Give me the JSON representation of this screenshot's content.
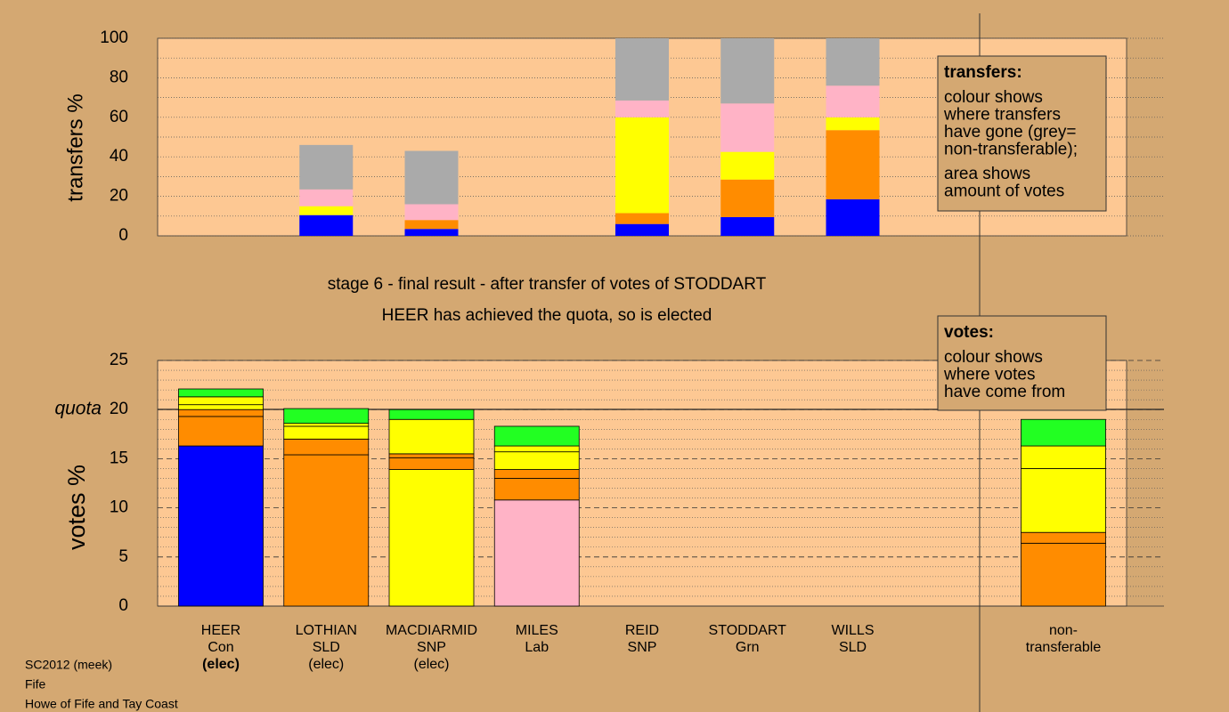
{
  "chart_data": [
    {
      "type": "stacked-bar",
      "ylabel": "transfers %",
      "ylim": [
        0,
        100
      ],
      "yticks": [
        0,
        20,
        40,
        60,
        80,
        100
      ],
      "minor_yticks": [
        10,
        30,
        50,
        70,
        90
      ],
      "series": [
        {
          "color": "#0000ff",
          "values": [
            null,
            10.5,
            3.5,
            null,
            6,
            9.5,
            18.5,
            null
          ]
        },
        {
          "color": "#ff8c00",
          "values": [
            null,
            0,
            4.5,
            null,
            5.5,
            19,
            35,
            null
          ]
        },
        {
          "color": "#ffff00",
          "values": [
            null,
            4.5,
            0,
            null,
            48.5,
            14,
            6.5,
            null
          ]
        },
        {
          "color": "#ffb3c6",
          "values": [
            null,
            8.5,
            8,
            null,
            8.5,
            24.5,
            16,
            null
          ]
        },
        {
          "color": "#aaaaaa",
          "values": [
            null,
            22.5,
            27,
            null,
            31.5,
            33,
            24,
            null
          ]
        }
      ],
      "note": {
        "heading": "transfers:",
        "paragraphs": [
          [
            "colour shows",
            "where transfers",
            "have gone (grey=",
            "non-transferable);"
          ],
          [
            "area shows",
            "amount of votes"
          ]
        ]
      }
    },
    {
      "type": "stacked-bar",
      "title": "stage 6 - final result - after transfer of votes of STODDART",
      "subtitle": "HEER has achieved the quota, so is elected",
      "ylabel": "votes %",
      "ylim": [
        0,
        25
      ],
      "yticks": [
        0,
        5,
        10,
        15,
        20,
        25
      ],
      "minor_yticks": [
        1,
        2,
        3,
        4,
        6,
        7,
        8,
        9,
        11,
        12,
        13,
        14,
        16,
        17,
        18,
        19,
        21,
        22,
        23,
        24
      ],
      "quota": {
        "label": "quota",
        "value": 20.02
      },
      "categories": [
        [
          "HEER",
          "Con",
          "(elec)"
        ],
        [
          "LOTHIAN",
          "SLD",
          "(elec)"
        ],
        [
          "MACDIARMID",
          "SNP",
          "(elec)"
        ],
        [
          "MILES",
          "Lab"
        ],
        [
          "REID",
          "SNP"
        ],
        [
          "STODDART",
          "Grn"
        ],
        [
          "WILLS",
          "SLD"
        ],
        [
          "non-",
          "transferable"
        ]
      ],
      "label_bold": [
        true,
        false,
        false,
        false,
        false,
        false,
        false,
        false
      ],
      "stacks": [
        [
          {
            "value": 16.3,
            "color": "#0000ff"
          },
          {
            "value": 3.0,
            "color": "#ff8c00"
          },
          {
            "value": 0.7,
            "color": "#ff8c00"
          },
          {
            "value": 0.5,
            "color": "#ffff00"
          },
          {
            "value": 0.8,
            "color": "#ffff00"
          },
          {
            "value": 0.8,
            "color": "#22ff22"
          }
        ],
        [
          {
            "value": 15.4,
            "color": "#ff8c00"
          },
          {
            "value": 1.6,
            "color": "#ff8c00"
          },
          {
            "value": 1.3,
            "color": "#ffff00"
          },
          {
            "value": 0.3,
            "color": "#ffff00"
          },
          {
            "value": 1.5,
            "color": "#22ff22"
          }
        ],
        [
          {
            "value": 13.9,
            "color": "#ffff00"
          },
          {
            "value": 1.2,
            "color": "#ff8c00"
          },
          {
            "value": 0.4,
            "color": "#ff8c00"
          },
          {
            "value": 3.5,
            "color": "#ffff00"
          },
          {
            "value": 1.0,
            "color": "#22ff22"
          }
        ],
        [
          {
            "value": 10.8,
            "color": "#ffb3c6"
          },
          {
            "value": 2.2,
            "color": "#ff8c00"
          },
          {
            "value": 0.9,
            "color": "#ff8c00"
          },
          {
            "value": 1.8,
            "color": "#ffff00"
          },
          {
            "value": 0.6,
            "color": "#ffff00"
          },
          {
            "value": 2.0,
            "color": "#22ff22"
          }
        ],
        [],
        [],
        [],
        [
          {
            "value": 6.4,
            "color": "#ff8c00"
          },
          {
            "value": 1.1,
            "color": "#ff8c00"
          },
          {
            "value": 6.5,
            "color": "#ffff00"
          },
          {
            "value": 2.3,
            "color": "#ffff00"
          },
          {
            "value": 2.7,
            "color": "#22ff22"
          }
        ]
      ],
      "note": {
        "heading": "votes:",
        "paragraphs": [
          [
            "colour shows",
            "where votes",
            "have come from"
          ]
        ]
      }
    }
  ],
  "footer": [
    "SC2012 (meek)",
    "Fife",
    "Howe of Fife and Tay Coast"
  ]
}
